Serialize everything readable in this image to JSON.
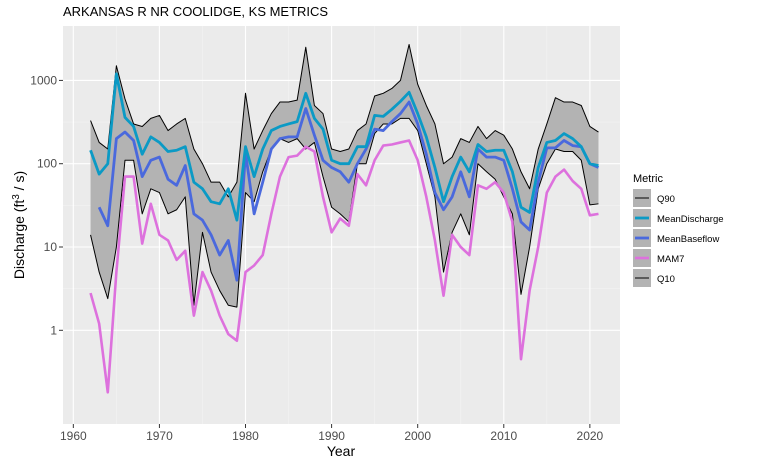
{
  "chart_data": {
    "type": "line",
    "title": "ARKANSAS R NR COOLIDGE, KS  METRICS",
    "xlabel": "Year",
    "ylabel": "Discharge (ft",
    "ylabel_sup": "3",
    "ylabel_suffix": " / s)",
    "y_scale": "log10",
    "xlim": [
      1958.8,
      2023.5
    ],
    "ylim": [
      0.075,
      4500
    ],
    "x_ticks": [
      1960,
      1970,
      1980,
      1990,
      2000,
      2010,
      2020
    ],
    "x_tick_labels": [
      "1960",
      "1970",
      "1980",
      "1990",
      "2000",
      "2010",
      "2020"
    ],
    "y_ticks": [
      1,
      10,
      100,
      1000
    ],
    "y_tick_labels": [
      "1",
      "10",
      "100",
      "1000"
    ],
    "grid": true,
    "legend": {
      "title": "Metric",
      "position": "right",
      "entries": [
        "Q90",
        "MeanDischarge",
        "MeanBaseflow",
        "MAM7",
        "Q10"
      ]
    },
    "x": [
      1962,
      1963,
      1964,
      1965,
      1966,
      1967,
      1968,
      1969,
      1970,
      1971,
      1972,
      1973,
      1974,
      1975,
      1976,
      1977,
      1978,
      1979,
      1980,
      1981,
      1982,
      1983,
      1984,
      1985,
      1986,
      1987,
      1988,
      1989,
      1990,
      1991,
      1992,
      1993,
      1994,
      1995,
      1996,
      1997,
      1998,
      1999,
      2000,
      2001,
      2002,
      2003,
      2004,
      2005,
      2006,
      2007,
      2008,
      2009,
      2010,
      2011,
      2012,
      2013,
      2014,
      2015,
      2016,
      2017,
      2018,
      2019,
      2020,
      2021
    ],
    "series": [
      {
        "name": "Q90",
        "color": "#000000",
        "values": [
          330,
          180,
          150,
          1500,
          600,
          300,
          280,
          350,
          380,
          250,
          300,
          350,
          150,
          100,
          60,
          60,
          40,
          60,
          700,
          150,
          250,
          400,
          550,
          550,
          580,
          2500,
          500,
          400,
          150,
          140,
          150,
          250,
          300,
          650,
          700,
          800,
          1000,
          2700,
          900,
          500,
          300,
          100,
          120,
          200,
          180,
          280,
          200,
          250,
          220,
          150,
          80,
          50,
          150,
          300,
          620,
          550,
          550,
          500,
          280,
          240
        ]
      },
      {
        "name": "MeanDischarge",
        "color": "#0b9ac5",
        "values": [
          145,
          75,
          100,
          1200,
          360,
          280,
          130,
          210,
          180,
          140,
          145,
          160,
          60,
          50,
          35,
          33,
          50,
          21,
          160,
          70,
          150,
          250,
          280,
          300,
          320,
          700,
          350,
          260,
          110,
          100,
          100,
          160,
          160,
          380,
          370,
          450,
          560,
          720,
          400,
          210,
          90,
          35,
          70,
          120,
          80,
          170,
          140,
          145,
          145,
          80,
          30,
          26,
          90,
          180,
          190,
          230,
          200,
          160,
          100,
          95
        ]
      },
      {
        "name": "MeanBaseflow",
        "color": "#4a69dd",
        "values": [
          null,
          30,
          18,
          200,
          240,
          190,
          70,
          110,
          120,
          65,
          55,
          95,
          25,
          21,
          14,
          8,
          12,
          4,
          135,
          25,
          60,
          150,
          200,
          210,
          210,
          460,
          220,
          110,
          90,
          80,
          60,
          100,
          150,
          260,
          250,
          320,
          400,
          550,
          300,
          130,
          45,
          28,
          40,
          80,
          40,
          150,
          120,
          120,
          110,
          50,
          20,
          16,
          60,
          155,
          155,
          190,
          165,
          160,
          100,
          90
        ]
      },
      {
        "name": "MAM7",
        "color": "#dd71dd",
        "values": [
          2.8,
          1.2,
          0.18,
          5,
          70,
          70,
          11,
          33,
          14,
          12,
          7,
          9,
          1.5,
          5,
          3,
          1.5,
          0.9,
          0.75,
          5,
          6,
          8,
          25,
          70,
          120,
          125,
          160,
          140,
          40,
          15,
          22,
          18,
          75,
          55,
          110,
          165,
          170,
          180,
          190,
          110,
          40,
          12,
          2.6,
          14,
          10,
          8,
          55,
          50,
          60,
          45,
          20,
          0.45,
          3,
          10,
          45,
          70,
          85,
          62,
          50,
          24,
          25
        ]
      },
      {
        "name": "Q10",
        "color": "#000000",
        "values": [
          14,
          5,
          2.4,
          10,
          110,
          110,
          25,
          50,
          45,
          25,
          28,
          40,
          2,
          15,
          5,
          3,
          2,
          1.9,
          45,
          35,
          80,
          150,
          200,
          180,
          200,
          150,
          180,
          70,
          30,
          25,
          20,
          100,
          100,
          230,
          300,
          300,
          350,
          350,
          250,
          100,
          40,
          5,
          15,
          25,
          14,
          100,
          80,
          65,
          40,
          25,
          2.7,
          10,
          50,
          100,
          150,
          140,
          140,
          110,
          32,
          33
        ]
      }
    ]
  }
}
